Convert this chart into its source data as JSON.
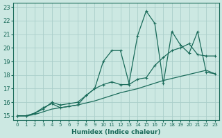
{
  "xlabel": "Humidex (Indice chaleur)",
  "bg_color": "#cce8e2",
  "grid_color": "#aaceca",
  "line_color": "#1a6b5a",
  "xlim": [
    -0.5,
    23.5
  ],
  "ylim": [
    14.7,
    23.3
  ],
  "xticks": [
    0,
    1,
    2,
    3,
    4,
    5,
    6,
    7,
    8,
    9,
    10,
    11,
    12,
    13,
    14,
    15,
    16,
    17,
    18,
    19,
    20,
    21,
    22,
    23
  ],
  "yticks": [
    15,
    16,
    17,
    18,
    19,
    20,
    21,
    22,
    23
  ],
  "line1_x": [
    0,
    1,
    2,
    3,
    4,
    5,
    6,
    7,
    8,
    9,
    10,
    11,
    12,
    13,
    14,
    15,
    16,
    17,
    18,
    19,
    20,
    21,
    22,
    23
  ],
  "line1_y": [
    15.0,
    15.0,
    15.2,
    15.6,
    15.9,
    15.6,
    15.7,
    15.8,
    16.5,
    17.0,
    19.0,
    19.8,
    19.8,
    17.4,
    20.9,
    22.7,
    21.8,
    17.4,
    21.2,
    20.2,
    19.6,
    21.2,
    18.2,
    18.1
  ],
  "line2_x": [
    0,
    1,
    2,
    3,
    4,
    5,
    6,
    7,
    8,
    9,
    10,
    11,
    12,
    13,
    14,
    15,
    16,
    17,
    18,
    19,
    20,
    21,
    22,
    23
  ],
  "line2_y": [
    15.0,
    15.0,
    15.2,
    15.5,
    16.0,
    15.8,
    15.9,
    16.0,
    16.5,
    17.0,
    17.3,
    17.5,
    17.3,
    17.3,
    17.7,
    17.8,
    18.7,
    19.3,
    19.8,
    20.0,
    20.3,
    19.5,
    19.4,
    19.4
  ],
  "line3_x": [
    0,
    1,
    2,
    3,
    4,
    5,
    6,
    7,
    8,
    9,
    10,
    11,
    12,
    13,
    14,
    15,
    16,
    17,
    18,
    19,
    20,
    21,
    22,
    23
  ],
  "line3_y": [
    15.0,
    15.0,
    15.1,
    15.3,
    15.5,
    15.6,
    15.7,
    15.8,
    15.95,
    16.1,
    16.3,
    16.5,
    16.7,
    16.85,
    17.0,
    17.2,
    17.4,
    17.6,
    17.75,
    17.9,
    18.05,
    18.2,
    18.35,
    18.1
  ]
}
